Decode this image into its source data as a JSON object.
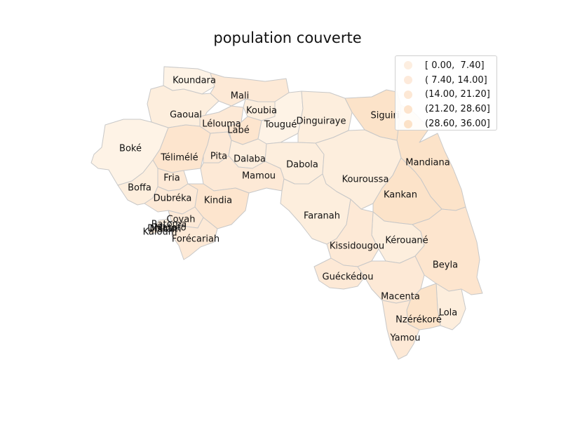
{
  "title": "population couverte",
  "colors": {
    "class_0": "#fef3e6",
    "class_1": "#fdeedd",
    "class_2": "#fde9d6",
    "class_3": "#fde5ce",
    "class_4": "#fce3c9",
    "border": "#c8c8c8"
  },
  "legend": [
    {
      "label": "[ 0.00,  7.40]",
      "color": "#fdeee0"
    },
    {
      "label": "( 7.40, 14.00]",
      "color": "#fdeadb"
    },
    {
      "label": "(14.00, 21.20]",
      "color": "#fde8d5"
    },
    {
      "label": "(21.20, 28.60]",
      "color": "#fde4cd"
    },
    {
      "label": "(28.60, 36.00]",
      "color": "#fce2c7"
    }
  ],
  "regions": [
    {
      "name": "Koundara",
      "class": 0
    },
    {
      "name": "Mali",
      "class": 2
    },
    {
      "name": "Koubia",
      "class": 1
    },
    {
      "name": "Gaoual",
      "class": 1
    },
    {
      "name": "Lélouma",
      "class": 2
    },
    {
      "name": "Labé",
      "class": 3
    },
    {
      "name": "Tougué",
      "class": 0
    },
    {
      "name": "Dinguiraye",
      "class": 1
    },
    {
      "name": "Siguiri",
      "class": 4
    },
    {
      "name": "Boké",
      "class": 0
    },
    {
      "name": "Télimélé",
      "class": 3
    },
    {
      "name": "Pita",
      "class": 2
    },
    {
      "name": "Dalaba",
      "class": 1
    },
    {
      "name": "Mandiana",
      "class": 4
    },
    {
      "name": "Dabola",
      "class": 1
    },
    {
      "name": "Mamou",
      "class": 2
    },
    {
      "name": "Kouroussa",
      "class": 1
    },
    {
      "name": "Fria",
      "class": 2
    },
    {
      "name": "Boffa",
      "class": 1
    },
    {
      "name": "Kankan",
      "class": 4
    },
    {
      "name": "Dubréka",
      "class": 2
    },
    {
      "name": "Kindia",
      "class": 3
    },
    {
      "name": "Coyah",
      "class": 2
    },
    {
      "name": "Faranah",
      "class": 1
    },
    {
      "name": "Forécariah",
      "class": 2
    },
    {
      "name": "Kérouané",
      "class": 1
    },
    {
      "name": "Kissidougou",
      "class": 2
    },
    {
      "name": "Beyla",
      "class": 3
    },
    {
      "name": "Guéckédou",
      "class": 2
    },
    {
      "name": "Macenta",
      "class": 2
    },
    {
      "name": "Lola",
      "class": 1
    },
    {
      "name": "Nzérékoré",
      "class": 4
    },
    {
      "name": "Yamou",
      "class": 2
    },
    {
      "name": "Kaloum",
      "class": 1
    },
    {
      "name": "Dixinn",
      "class": 1
    },
    {
      "name": "Matam",
      "class": 1
    },
    {
      "name": "Ratoma",
      "class": 1
    },
    {
      "name": "Matoto",
      "class": 1
    }
  ]
}
